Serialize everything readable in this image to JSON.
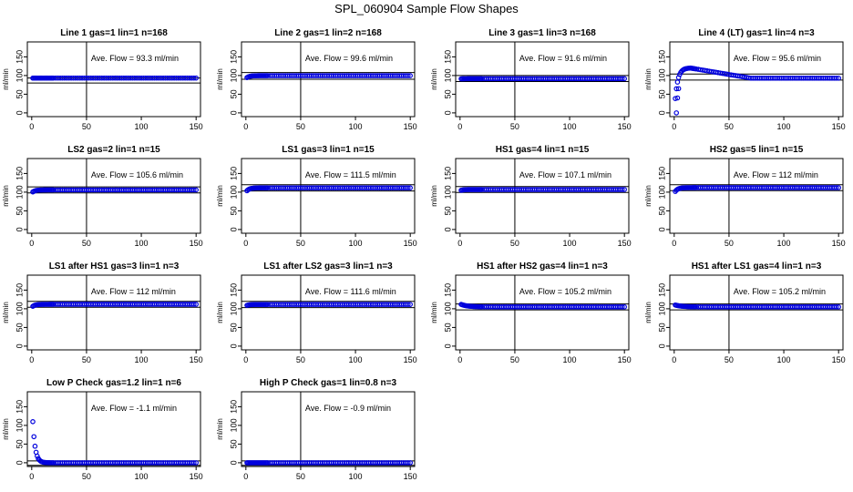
{
  "figure": {
    "title": "SPL_060904  Sample Flow Shapes"
  },
  "chart_data": [
    {
      "type": "scatter",
      "title": "Line 1 gas=1 lin=1 n=168",
      "ylabel": "ml/min",
      "xlim": [
        0,
        150
      ],
      "ylim": [
        -10,
        190
      ],
      "xticks": [
        "0",
        "50",
        "100",
        "150"
      ],
      "yticks": [
        "0",
        "50",
        "100",
        "150"
      ],
      "annotation": "Ave. Flow = 93.3  ml/min",
      "ave_flow": 93.3,
      "hlines": [
        93.3,
        80
      ],
      "vline": 50,
      "series": [
        {
          "shape": "flat",
          "start": 93,
          "level": 93.3
        }
      ]
    },
    {
      "type": "scatter",
      "title": "Line 2 gas=1 lin=2 n=168",
      "ylabel": "ml/min",
      "xlim": [
        0,
        150
      ],
      "ylim": [
        -10,
        190
      ],
      "xticks": [
        "0",
        "50",
        "100",
        "150"
      ],
      "yticks": [
        "0",
        "50",
        "100",
        "150"
      ],
      "annotation": "Ave. Flow = 99.6  ml/min",
      "ave_flow": 99.6,
      "hlines": [
        108,
        90
      ],
      "vline": 50,
      "series": [
        {
          "shape": "flat",
          "start": 92,
          "level": 99.6
        }
      ]
    },
    {
      "type": "scatter",
      "title": "Line 3 gas=1 lin=3 n=168",
      "ylabel": "ml/min",
      "xlim": [
        0,
        150
      ],
      "ylim": [
        -10,
        190
      ],
      "xticks": [
        "0",
        "50",
        "100",
        "150"
      ],
      "yticks": [
        "0",
        "50",
        "100",
        "150"
      ],
      "annotation": "Ave. Flow = 91.6  ml/min",
      "ave_flow": 91.6,
      "hlines": [
        100,
        84
      ],
      "vline": 50,
      "series": [
        {
          "shape": "flat",
          "start": 91,
          "level": 91.6
        }
      ]
    },
    {
      "type": "scatter",
      "title": "Line 4 (LT) gas=1 lin=4 n=3",
      "ylabel": "ml/min",
      "xlim": [
        0,
        150
      ],
      "ylim": [
        -10,
        190
      ],
      "xticks": [
        "0",
        "50",
        "100",
        "150"
      ],
      "yticks": [
        "0",
        "50",
        "100",
        "150"
      ],
      "annotation": "Ave. Flow = 95.6  ml/min",
      "ave_flow": 95.6,
      "hlines": [
        104,
        88
      ],
      "vline": 50,
      "series": [
        {
          "shape": "overshoot",
          "start": 0,
          "level": 93,
          "peak": 120,
          "peak_x": 15
        }
      ]
    },
    {
      "type": "scatter",
      "title": "LS2 gas=2 lin=1 n=15",
      "ylabel": "ml/min",
      "xlim": [
        0,
        150
      ],
      "ylim": [
        -10,
        190
      ],
      "xticks": [
        "0",
        "50",
        "100",
        "150"
      ],
      "yticks": [
        "0",
        "50",
        "100",
        "150"
      ],
      "annotation": "Ave. Flow = 105.6  ml/min",
      "ave_flow": 105.6,
      "hlines": [
        114,
        98
      ],
      "vline": 50,
      "series": [
        {
          "shape": "flat",
          "start": 98,
          "level": 106
        }
      ]
    },
    {
      "type": "scatter",
      "title": "LS1 gas=3 lin=1 n=15",
      "ylabel": "ml/min",
      "xlim": [
        0,
        150
      ],
      "ylim": [
        -10,
        190
      ],
      "xticks": [
        "0",
        "50",
        "100",
        "150"
      ],
      "yticks": [
        "0",
        "50",
        "100",
        "150"
      ],
      "annotation": "Ave. Flow = 111.5  ml/min",
      "ave_flow": 111.5,
      "hlines": [
        120,
        103
      ],
      "vline": 50,
      "series": [
        {
          "shape": "flat",
          "start": 100,
          "level": 111.5
        }
      ]
    },
    {
      "type": "scatter",
      "title": "HS1 gas=4 lin=1 n=15",
      "ylabel": "ml/min",
      "xlim": [
        0,
        150
      ],
      "ylim": [
        -10,
        190
      ],
      "xticks": [
        "0",
        "50",
        "100",
        "150"
      ],
      "yticks": [
        "0",
        "50",
        "100",
        "150"
      ],
      "annotation": "Ave. Flow = 107.1  ml/min",
      "ave_flow": 107.1,
      "hlines": [
        115,
        99
      ],
      "vline": 50,
      "series": [
        {
          "shape": "flat",
          "start": 104,
          "level": 107
        }
      ]
    },
    {
      "type": "scatter",
      "title": "HS2 gas=5 lin=1 n=15",
      "ylabel": "ml/min",
      "xlim": [
        0,
        150
      ],
      "ylim": [
        -10,
        190
      ],
      "xticks": [
        "0",
        "50",
        "100",
        "150"
      ],
      "yticks": [
        "0",
        "50",
        "100",
        "150"
      ],
      "annotation": "Ave. Flow = 112  ml/min",
      "ave_flow": 112,
      "hlines": [
        120,
        104
      ],
      "vline": 50,
      "series": [
        {
          "shape": "flat",
          "start": 97,
          "level": 112
        }
      ]
    },
    {
      "type": "scatter",
      "title": "LS1 after HS1 gas=3 lin=1 n=3",
      "ylabel": "ml/min",
      "xlim": [
        0,
        150
      ],
      "ylim": [
        -10,
        190
      ],
      "xticks": [
        "0",
        "50",
        "100",
        "150"
      ],
      "yticks": [
        "0",
        "50",
        "100",
        "150"
      ],
      "annotation": "Ave. Flow = 112  ml/min",
      "ave_flow": 112,
      "hlines": [
        120,
        104
      ],
      "vline": 50,
      "series": [
        {
          "shape": "flat",
          "start": 104,
          "level": 112
        }
      ]
    },
    {
      "type": "scatter",
      "title": "LS1 after LS2 gas=3 lin=1 n=3",
      "ylabel": "ml/min",
      "xlim": [
        0,
        150
      ],
      "ylim": [
        -10,
        190
      ],
      "xticks": [
        "0",
        "50",
        "100",
        "150"
      ],
      "yticks": [
        "0",
        "50",
        "100",
        "150"
      ],
      "annotation": "Ave. Flow = 111.6  ml/min",
      "ave_flow": 111.6,
      "hlines": [
        120,
        103
      ],
      "vline": 50,
      "series": [
        {
          "shape": "flat",
          "start": 108,
          "level": 111.6
        }
      ]
    },
    {
      "type": "scatter",
      "title": "HS1 after HS2 gas=4 lin=1 n=3",
      "ylabel": "ml/min",
      "xlim": [
        0,
        150
      ],
      "ylim": [
        -10,
        190
      ],
      "xticks": [
        "0",
        "50",
        "100",
        "150"
      ],
      "yticks": [
        "0",
        "50",
        "100",
        "150"
      ],
      "annotation": "Ave. Flow = 105.2  ml/min",
      "ave_flow": 105.2,
      "hlines": [
        113,
        97
      ],
      "vline": 50,
      "series": [
        {
          "shape": "decay",
          "start": 113,
          "level": 105
        }
      ]
    },
    {
      "type": "scatter",
      "title": "HS1 after LS1 gas=4 lin=1 n=3",
      "ylabel": "ml/min",
      "xlim": [
        0,
        150
      ],
      "ylim": [
        -10,
        190
      ],
      "xticks": [
        "0",
        "50",
        "100",
        "150"
      ],
      "yticks": [
        "0",
        "50",
        "100",
        "150"
      ],
      "annotation": "Ave. Flow = 105.2  ml/min",
      "ave_flow": 105.2,
      "hlines": [
        113,
        97
      ],
      "vline": 50,
      "series": [
        {
          "shape": "decay",
          "start": 111,
          "level": 105
        }
      ]
    },
    {
      "type": "scatter",
      "title": "Low P Check gas=1.2 lin=1 n=6",
      "ylabel": "ml/min",
      "xlim": [
        0,
        150
      ],
      "ylim": [
        -10,
        190
      ],
      "xticks": [
        "0",
        "50",
        "100",
        "150"
      ],
      "yticks": [
        "0",
        "50",
        "100",
        "150"
      ],
      "annotation": "Ave. Flow = -1.1  ml/min",
      "ave_flow": -1.1,
      "hlines": [
        5,
        -7
      ],
      "vline": 50,
      "series": [
        {
          "shape": "spike",
          "start": 110,
          "level": 0
        }
      ]
    },
    {
      "type": "scatter",
      "title": "High P Check gas=1 lin=0.8 n=3",
      "ylabel": "ml/min",
      "xlim": [
        0,
        150
      ],
      "ylim": [
        -10,
        190
      ],
      "xticks": [
        "0",
        "50",
        "100",
        "150"
      ],
      "yticks": [
        "0",
        "50",
        "100",
        "150"
      ],
      "annotation": "Ave. Flow = -0.9  ml/min",
      "ave_flow": -0.9,
      "hlines": [
        5,
        -7
      ],
      "vline": 50,
      "series": [
        {
          "shape": "flat",
          "start": 0,
          "level": 0
        }
      ]
    }
  ]
}
